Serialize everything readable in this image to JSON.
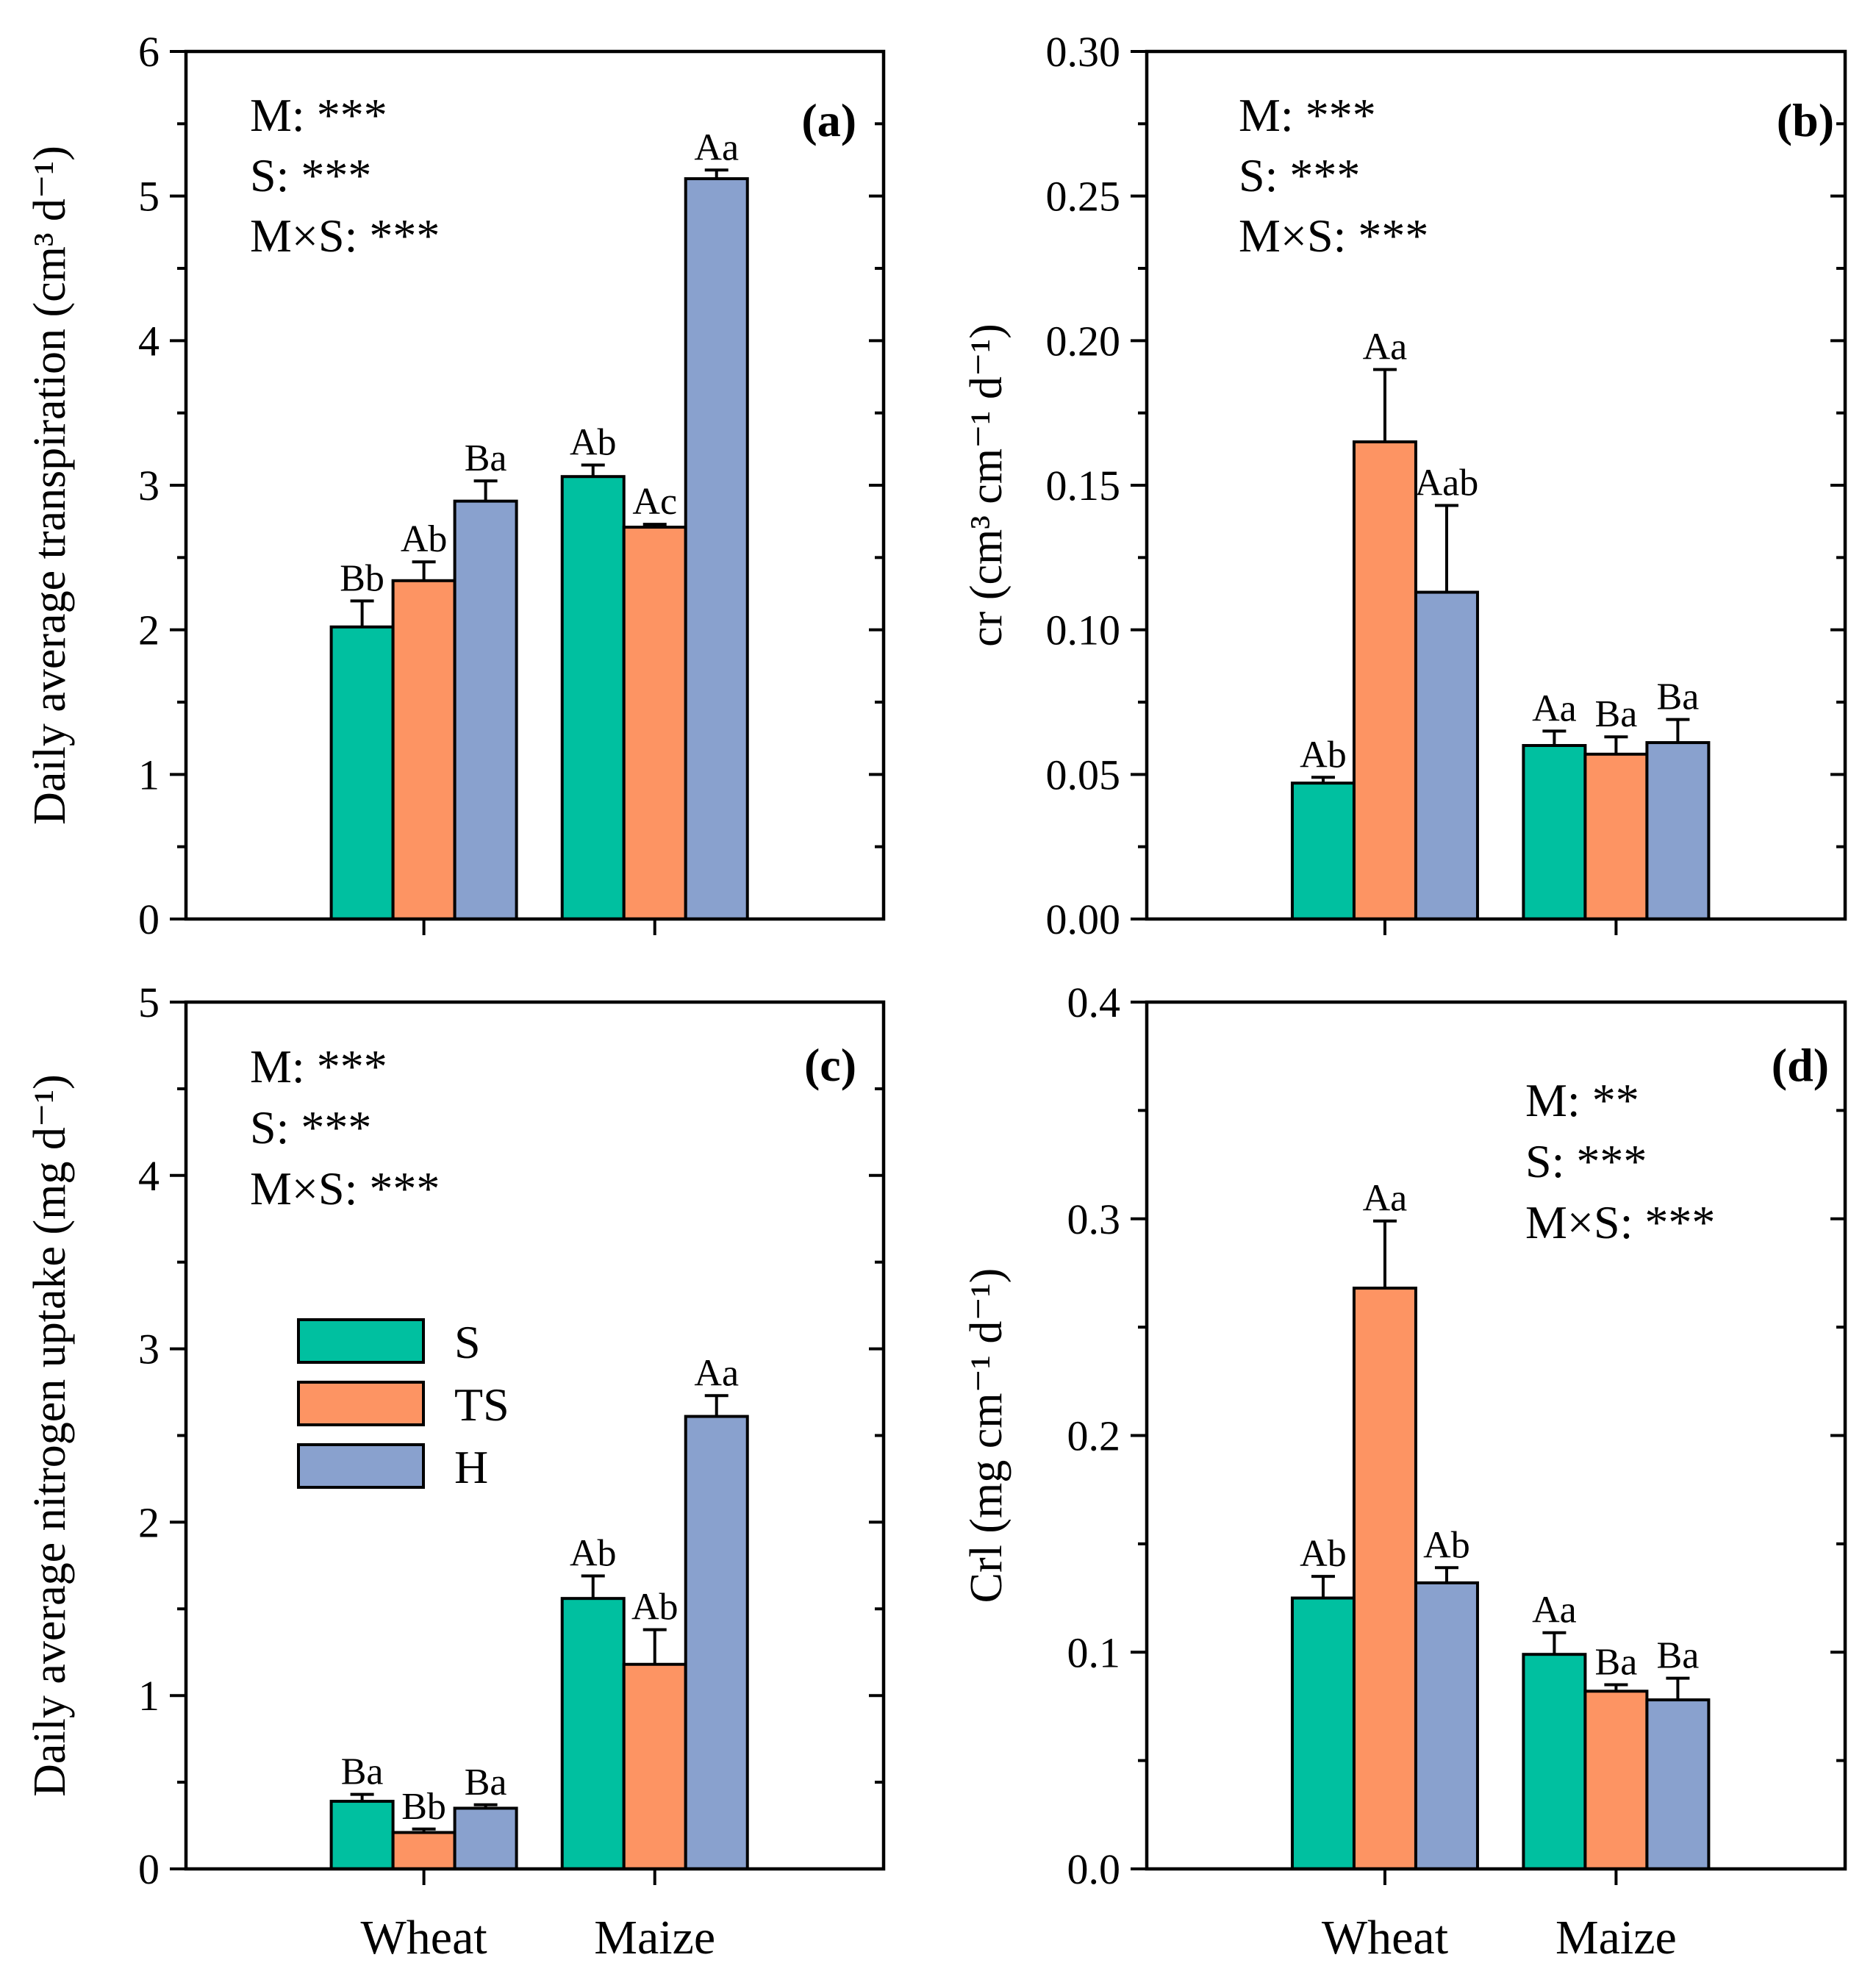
{
  "colors": {
    "S": "#00c0a0",
    "TS": "#fd9463",
    "H": "#89a1ce"
  },
  "legend": [
    {
      "key": "S",
      "label": "S"
    },
    {
      "key": "TS",
      "label": "TS"
    },
    {
      "key": "H",
      "label": "H"
    }
  ],
  "chart_data": [
    {
      "type": "bar",
      "panel": "(a)",
      "categories": [
        "Wheat",
        "Maize"
      ],
      "show_category_labels": false,
      "ylabel": "Daily average transpiration (cm³ d⁻¹)",
      "ylim": [
        0,
        6
      ],
      "yticks": [
        "0",
        "1",
        "2",
        "3",
        "4",
        "5",
        "6"
      ],
      "series": [
        {
          "name": "S",
          "values": [
            2.02,
            3.06
          ],
          "errors": [
            0.18,
            0.08
          ],
          "letters": [
            "Bb",
            "Ab"
          ]
        },
        {
          "name": "TS",
          "values": [
            2.34,
            2.71
          ],
          "errors": [
            0.13,
            0.02
          ],
          "letters": [
            "Ab",
            "Ac"
          ]
        },
        {
          "name": "H",
          "values": [
            2.89,
            5.12
          ],
          "errors": [
            0.14,
            0.06
          ],
          "letters": [
            "Ba",
            "Aa"
          ]
        }
      ],
      "stats": [
        "M: ***",
        "S: ***",
        "M×S: ***"
      ]
    },
    {
      "type": "bar",
      "panel": "(b)",
      "categories": [
        "Wheat",
        "Maize"
      ],
      "show_category_labels": false,
      "ylabel": "cr (cm³ cm⁻¹ d⁻¹)",
      "ylim": [
        0,
        0.3
      ],
      "yticks": [
        "0.00",
        "0.05",
        "0.10",
        "0.15",
        "0.20",
        "0.25",
        "0.30"
      ],
      "series": [
        {
          "name": "S",
          "values": [
            0.047,
            0.06
          ],
          "errors": [
            0.002,
            0.005
          ],
          "letters": [
            "Ab",
            "Aa"
          ]
        },
        {
          "name": "TS",
          "values": [
            0.165,
            0.057
          ],
          "errors": [
            0.025,
            0.006
          ],
          "letters": [
            "Aa",
            "Ba"
          ]
        },
        {
          "name": "H",
          "values": [
            0.113,
            0.061
          ],
          "errors": [
            0.03,
            0.008
          ],
          "letters": [
            "Aab",
            "Ba"
          ]
        }
      ],
      "stats": [
        "M: ***",
        "S: ***",
        "M×S: ***"
      ]
    },
    {
      "type": "bar",
      "panel": "(c)",
      "categories": [
        "Wheat",
        "Maize"
      ],
      "show_category_labels": true,
      "ylabel": "Daily average nitrogen uptake (mg d⁻¹)",
      "ylim": [
        0,
        5
      ],
      "yticks": [
        "0",
        "1",
        "2",
        "3",
        "4",
        "5"
      ],
      "series": [
        {
          "name": "S",
          "values": [
            0.39,
            1.56
          ],
          "errors": [
            0.04,
            0.13
          ],
          "letters": [
            "Ba",
            "Ab"
          ]
        },
        {
          "name": "TS",
          "values": [
            0.21,
            1.18
          ],
          "errors": [
            0.02,
            0.2
          ],
          "letters": [
            "Bb",
            "Ab"
          ]
        },
        {
          "name": "H",
          "values": [
            0.35,
            2.61
          ],
          "errors": [
            0.02,
            0.12
          ],
          "letters": [
            "Ba",
            "Aa"
          ]
        }
      ],
      "stats": [
        "M: ***",
        "S: ***",
        "M×S: ***"
      ]
    },
    {
      "type": "bar",
      "panel": "(d)",
      "categories": [
        "Wheat",
        "Maize"
      ],
      "show_category_labels": true,
      "ylabel": "Crl (mg cm⁻¹ d⁻¹)",
      "ylim": [
        0,
        0.4
      ],
      "yticks": [
        "0.0",
        "0.1",
        "0.2",
        "0.3",
        "0.4"
      ],
      "series": [
        {
          "name": "S",
          "values": [
            0.125,
            0.099
          ],
          "errors": [
            0.01,
            0.01
          ],
          "letters": [
            "Ab",
            "Aa"
          ]
        },
        {
          "name": "TS",
          "values": [
            0.268,
            0.082
          ],
          "errors": [
            0.031,
            0.003
          ],
          "letters": [
            "Aa",
            "Ba"
          ]
        },
        {
          "name": "H",
          "values": [
            0.132,
            0.078
          ],
          "errors": [
            0.007,
            0.01
          ],
          "letters": [
            "Ab",
            "Ba"
          ]
        }
      ],
      "stats": [
        "M: **",
        "S: ***",
        "M×S: ***"
      ]
    }
  ]
}
